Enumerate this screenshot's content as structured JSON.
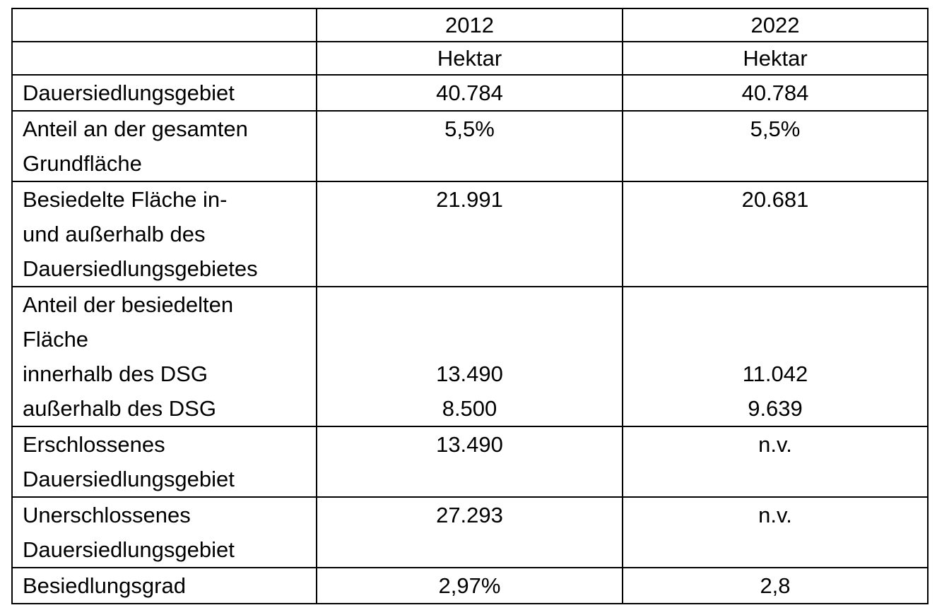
{
  "table": {
    "header": {
      "columns": [
        "2012",
        "2022"
      ],
      "units": [
        "Hektar",
        "Hektar"
      ]
    },
    "rows": [
      {
        "label": "Dauersiedlungsgebiet",
        "values": [
          "40.784",
          "40.784"
        ]
      },
      {
        "label": "Anteil an der gesamten\nGrundfläche",
        "values": [
          "5,5%",
          "5,5%"
        ]
      },
      {
        "label": "Besiedelte Fläche in-\nund außerhalb des\nDauersiedlungsgebietes",
        "values": [
          "21.991",
          "20.681"
        ]
      },
      {
        "label": "Anteil der besiedelten\nFläche",
        "subrows": [
          {
            "label": "innerhalb des DSG",
            "values": [
              "13.490",
              "11.042"
            ]
          },
          {
            "label": "außerhalb des DSG",
            "values": [
              "8.500",
              "9.639"
            ]
          }
        ]
      },
      {
        "label": "Erschlossenes\nDauersiedlungsgebiet",
        "values": [
          "13.490",
          "n.v."
        ]
      },
      {
        "label": "Unerschlossenes\nDauersiedlungsgebiet",
        "values": [
          "27.293",
          "n.v."
        ]
      },
      {
        "label": "Besiedlungsgrad",
        "values": [
          "2,97%",
          "2,8"
        ]
      }
    ]
  }
}
